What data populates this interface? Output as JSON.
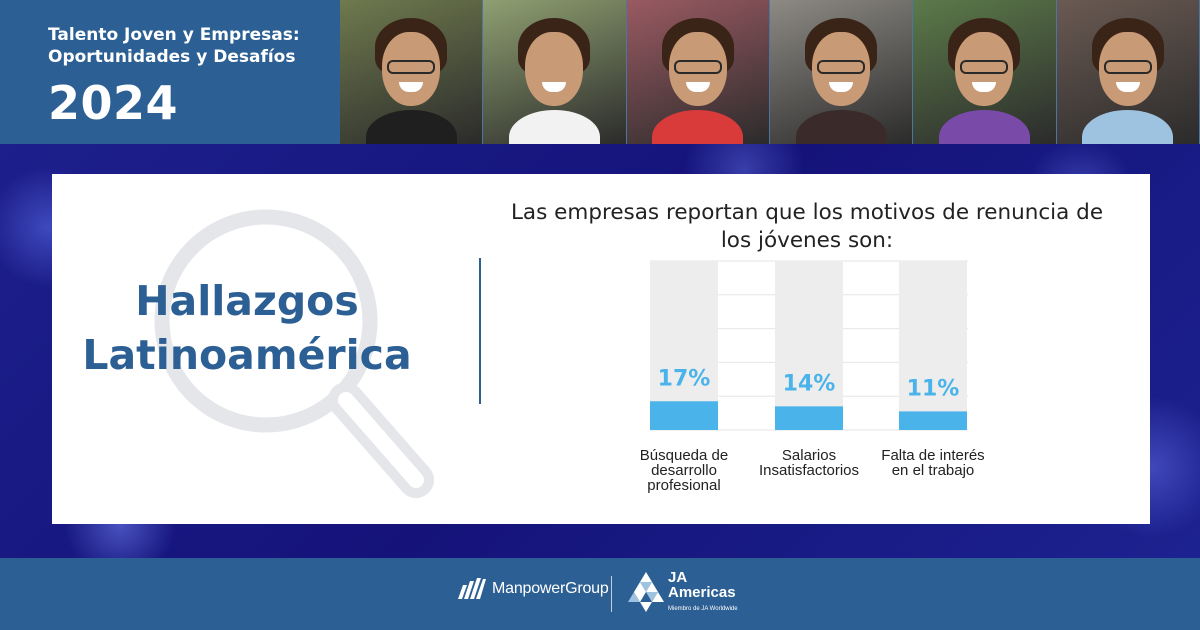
{
  "header": {
    "title_line1": "Talento Joven y Empresas:",
    "title_line2": "Oportunidades y Desafíos",
    "year": "2024",
    "photos": [
      {
        "bg": "#6f7a4e",
        "shirt": "#1f1f1f"
      },
      {
        "bg": "#8fa071",
        "shirt": "#f2f2f2"
      },
      {
        "bg": "#9a5a62",
        "shirt": "#d93a3a"
      },
      {
        "bg": "#8d8a84",
        "shirt": "#3a2a2a"
      },
      {
        "bg": "#5c7a4a",
        "shirt": "#7a4aa8"
      },
      {
        "bg": "#6a5a52",
        "shirt": "#9ec3e0"
      }
    ]
  },
  "panel": {
    "heading_line1": "Hallazgos",
    "heading_line2": "Latinoamérica"
  },
  "chart_data": {
    "type": "bar",
    "title_line1": "Las empresas reportan que los motivos de renuncia de",
    "title_line2": "los jóvenes son:",
    "categories": [
      [
        "Búsqueda de",
        "desarrollo",
        "profesional"
      ],
      [
        "Salarios",
        "Insatisfactorios"
      ],
      [
        "Falta de interés",
        "en el trabajo"
      ]
    ],
    "values": [
      17,
      14,
      11
    ],
    "value_labels": [
      "17%",
      "14%",
      "11%"
    ],
    "ylim": [
      0,
      100
    ],
    "grid": true,
    "bar_color": "#4ab3ea",
    "track_color": "#ededed",
    "label_color": "#4ab3ea"
  },
  "footer": {
    "manpower_name": "ManpowerGroup",
    "ja_line1": "JA",
    "ja_line2": "Americas",
    "ja_sub": "Miembro de JA Worldwide"
  },
  "colors": {
    "brand_blue": "#2c5f93",
    "band_blue": "#1a1a7e"
  }
}
